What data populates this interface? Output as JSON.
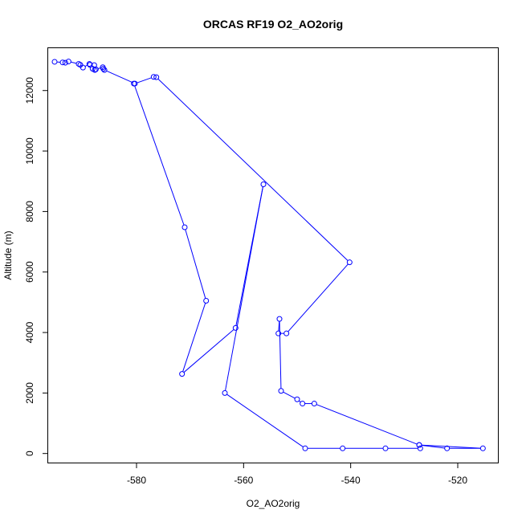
{
  "chart_data": {
    "type": "line",
    "title": "ORCAS RF19 O2_AO2orig",
    "xlabel": "O2_AO2orig",
    "ylabel": "Altitude (m)",
    "xlim": [
      -596.5,
      -512.5
    ],
    "ylim": [
      -300,
      13400
    ],
    "xticks": [
      -580,
      -560,
      -540,
      -520
    ],
    "yticks": [
      0,
      2000,
      4000,
      6000,
      8000,
      10000,
      12000
    ],
    "grid": false,
    "legend": "none",
    "color": "#0000ff",
    "marker": "open-circle",
    "series": [
      {
        "x": [
          -595.3,
          -593.8,
          -593.3,
          -592.7,
          -590.8,
          -590.5,
          -590.0,
          -588.8,
          -588.7,
          -588.2,
          -587.9,
          -587.8,
          -587.6,
          -586.3,
          -586.2,
          -586.0,
          -580.3,
          -576.8,
          -576.3,
          -540.2,
          -552.0,
          -553.5,
          -553.3,
          -553.0,
          -550.0,
          -549.0,
          -546.8,
          -527.2,
          -522.0,
          -515.3,
          -527.2,
          -527.0,
          -533.5,
          -541.5,
          -548.5,
          -563.5,
          -556.3,
          -561.5,
          -571.5,
          -567.0,
          -571.0,
          -580.5
        ],
        "y": [
          12950,
          12930,
          12920,
          12960,
          12880,
          12850,
          12760,
          12880,
          12850,
          12720,
          12840,
          12680,
          12700,
          12770,
          12720,
          12680,
          12230,
          12450,
          12440,
          6320,
          3970,
          3970,
          4450,
          2070,
          1790,
          1650,
          1650,
          280,
          170,
          170,
          280,
          170,
          170,
          170,
          170,
          2000,
          8900,
          4150,
          2630,
          5050,
          7480,
          12230
        ]
      }
    ]
  }
}
